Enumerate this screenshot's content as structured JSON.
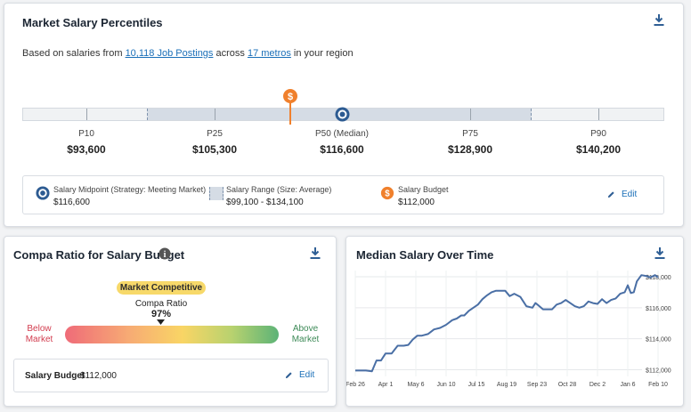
{
  "percentiles_card": {
    "title": "Market Salary Percentiles",
    "subtitle_prefix": "Based on salaries from ",
    "postings_link": "10,118 Job Postings",
    "subtitle_mid": " across ",
    "metros_link": "17 metros",
    "subtitle_suffix": " in your region",
    "percentiles": [
      {
        "label": "P10",
        "value": "$93,600"
      },
      {
        "label": "P25",
        "value": "$105,300"
      },
      {
        "label": "P50 (Median)",
        "value": "$116,600"
      },
      {
        "label": "P75",
        "value": "$128,900"
      },
      {
        "label": "P90",
        "value": "$140,200"
      }
    ],
    "budget_pin_symbol": "$",
    "legend": {
      "midpoint_label": "Salary Midpoint (Strategy: Meeting Market)",
      "midpoint_value": "$116,600",
      "range_label": "Salary Range (Size: Average)",
      "range_value": "$99,100 - $134,100",
      "budget_label": "Salary Budget",
      "budget_value": "$112,000",
      "budget_symbol": "$",
      "edit_label": "Edit"
    },
    "colors": {
      "budget": "#f0802c",
      "midpoint": "#2d5b92",
      "range_fill": "#d5dce5"
    }
  },
  "compa_card": {
    "title": "Compa Ratio for Salary Budget",
    "info_symbol": "i",
    "badge": "Market Competitive",
    "ratio_label": "Compa Ratio",
    "ratio_value": "97%",
    "below_line1": "Below",
    "below_line2": "Market",
    "above_line1": "Above",
    "above_line2": "Market",
    "budget_label": "Salary Budget",
    "budget_value": "$112,000",
    "edit_label": "Edit"
  },
  "chart_data": {
    "type": "line",
    "title": "Median Salary Over Time",
    "x_tick_labels": [
      "Feb 26",
      "Apr 1",
      "May 6",
      "Jun 10",
      "Jul 15",
      "Aug 19",
      "Sep 23",
      "Oct 28",
      "Dec 2",
      "Jan 6",
      "Feb 10"
    ],
    "y_tick_labels": [
      "$112,000",
      "$114,000",
      "$116,000",
      "$118,000"
    ],
    "ylim": [
      111800,
      118400
    ],
    "series": [
      {
        "color": "#4a6fa5",
        "x_index": [
          0,
          0.35,
          0.55,
          0.7,
          0.85,
          1.0,
          1.2,
          1.4,
          1.6,
          1.75,
          1.9,
          2.05,
          2.2,
          2.4,
          2.6,
          2.8,
          3.0,
          3.2,
          3.35,
          3.5,
          3.6,
          3.75,
          3.9,
          4.05,
          4.2,
          4.35,
          4.5,
          4.65,
          4.8,
          4.95,
          5.1,
          5.25,
          5.45,
          5.65,
          5.85,
          5.95,
          6.05,
          6.2,
          6.35,
          6.5,
          6.65,
          6.8,
          6.95,
          7.1,
          7.25,
          7.4,
          7.55,
          7.7,
          7.85,
          8.0,
          8.15,
          8.3,
          8.45,
          8.6,
          8.75,
          8.9,
          9.0,
          9.1,
          9.2,
          9.3,
          9.45,
          9.6,
          9.75,
          9.9,
          10.0
        ],
        "values": [
          111950,
          111950,
          111900,
          112600,
          112600,
          113050,
          113050,
          113550,
          113550,
          113600,
          113950,
          114200,
          114200,
          114300,
          114600,
          114700,
          114900,
          115200,
          115300,
          115500,
          115500,
          115800,
          116000,
          116200,
          116550,
          116800,
          117000,
          117100,
          117100,
          117100,
          116750,
          116900,
          116700,
          116100,
          116000,
          116300,
          116150,
          115900,
          115900,
          115900,
          116200,
          116300,
          116500,
          116300,
          116100,
          116000,
          116100,
          116400,
          116300,
          116250,
          116550,
          116300,
          116500,
          116600,
          116900,
          117000,
          117450,
          116950,
          117000,
          117700,
          118100,
          118050,
          117950,
          118100,
          117950
        ]
      }
    ]
  }
}
